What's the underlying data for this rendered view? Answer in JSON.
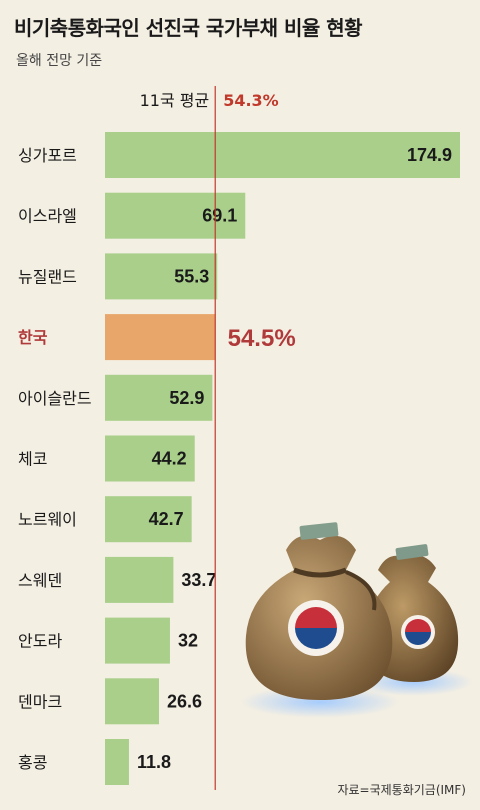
{
  "title": "비기축통화국인 선진국 국가부채 비율 현황",
  "subtitle": "올해 전망 기준",
  "source": "자료=국제통화기금(IMF)",
  "chart_data": {
    "type": "bar",
    "orientation": "horizontal",
    "title": "비기축통화국인 선진국 국가부채 비율 현황",
    "subtitle": "올해 전망 기준",
    "categories": [
      "싱가포르",
      "이스라엘",
      "뉴질랜드",
      "한국",
      "아이슬란드",
      "체코",
      "노르웨이",
      "스웨덴",
      "안도라",
      "덴마크",
      "홍콩"
    ],
    "values": [
      174.9,
      69.1,
      55.3,
      54.5,
      52.9,
      44.2,
      42.7,
      33.7,
      32,
      26.6,
      11.8
    ],
    "value_labels": [
      "174.9",
      "69.1",
      "55.3",
      "54.5%",
      "52.9",
      "44.2",
      "42.7",
      "33.7",
      "32",
      "26.6",
      "11.8"
    ],
    "highlight": {
      "category": "한국",
      "color": "#e9a66a",
      "label_color": "#b03a3a"
    },
    "bar_color": "#a9cf8b",
    "reference_line": {
      "label": "11국 평균",
      "value": 54.3,
      "value_label": "54.3%",
      "color": "#c0392b"
    },
    "xlim": [
      0,
      174.9
    ],
    "grid": false,
    "legend": "none"
  }
}
